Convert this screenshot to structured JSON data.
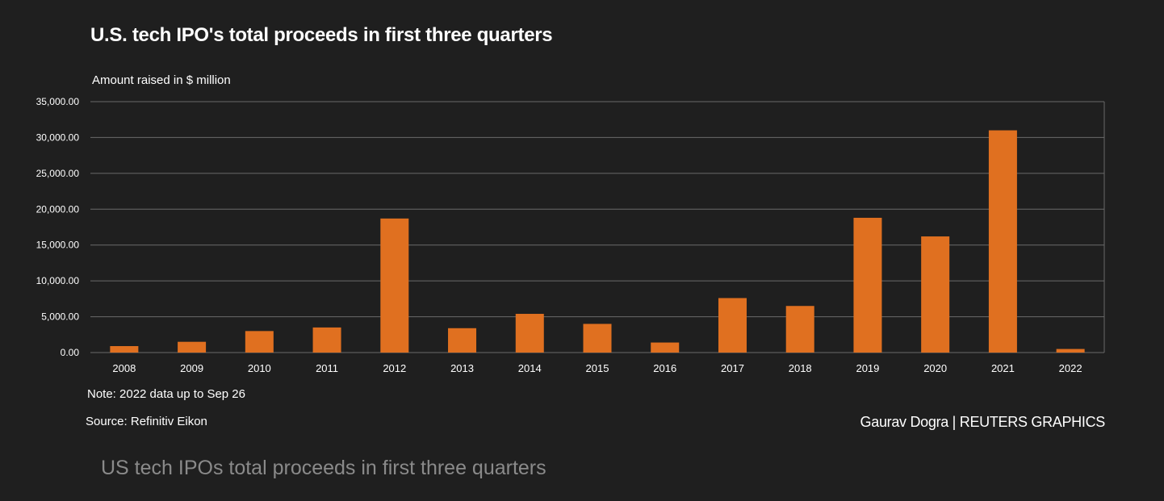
{
  "colors": {
    "background": "#1f1f1f",
    "bar": "#e07020",
    "grid": "#6a6a6a",
    "text": "#ffffff",
    "caption": "#8a8a8a"
  },
  "chart_data": {
    "type": "bar",
    "title": "U.S. tech IPO's total proceeds in first three quarters",
    "ylabel": "Amount raised in $ million",
    "xlabel": "",
    "categories": [
      "2008",
      "2009",
      "2010",
      "2011",
      "2012",
      "2013",
      "2014",
      "2015",
      "2016",
      "2017",
      "2018",
      "2019",
      "2020",
      "2021",
      "2022"
    ],
    "values": [
      900,
      1500,
      3000,
      3500,
      18700,
      3400,
      5400,
      4000,
      1400,
      7600,
      6500,
      18800,
      16200,
      31000,
      500
    ],
    "ylim": [
      0,
      35000
    ],
    "yticks": [
      0,
      5000,
      10000,
      15000,
      20000,
      25000,
      30000,
      35000
    ],
    "ytick_labels": [
      "0.00",
      "5,000.00",
      "10,000.00",
      "15,000.00",
      "20,000.00",
      "25,000.00",
      "30,000.00",
      "35,000.00"
    ],
    "grid": true,
    "legend": "none"
  },
  "footer": {
    "note": "Note: 2022 data up to Sep 26",
    "source": "Source:  Refinitiv Eikon",
    "credit": "Gaurav Dogra | REUTERS GRAPHICS"
  },
  "caption": "US tech IPOs total proceeds in first three quarters"
}
